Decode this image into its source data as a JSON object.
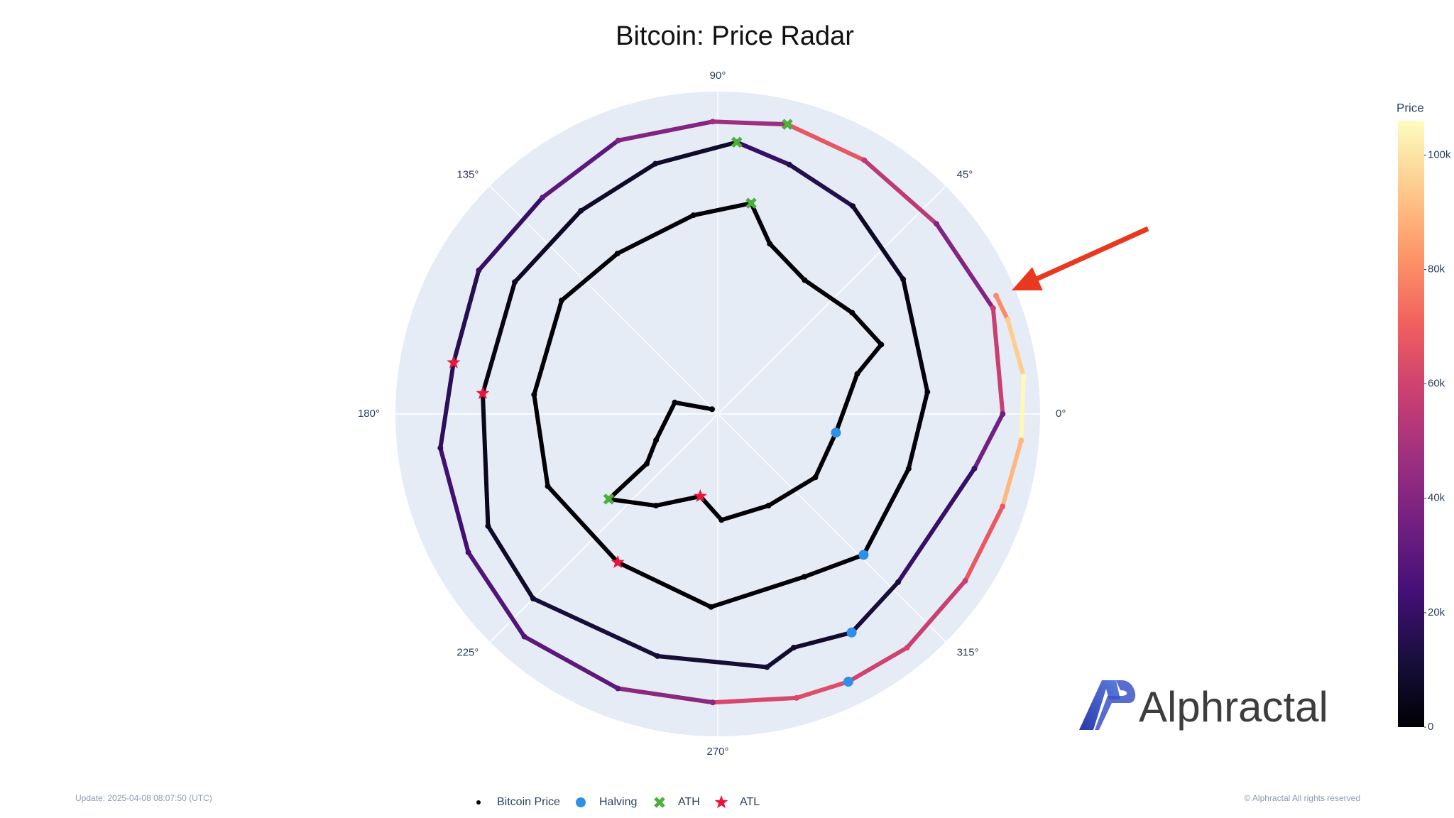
{
  "chart_data": {
    "type": "polar",
    "title": "Bitcoin: Price Radar",
    "rlim": [
      0,
      100
    ],
    "angular_ticks": [
      {
        "value": 0,
        "label": "0°"
      },
      {
        "value": 45,
        "label": "45°"
      },
      {
        "value": 90,
        "label": "90°"
      },
      {
        "value": 135,
        "label": "135°"
      },
      {
        "value": 180,
        "label": "180°"
      },
      {
        "value": 225,
        "label": "225°"
      },
      {
        "value": 270,
        "label": "270°"
      },
      {
        "value": 315,
        "label": "315°"
      }
    ],
    "background": "#e5ecf6",
    "series": [
      {
        "name": "Bitcoin Price",
        "color": "#000000",
        "marker": "line",
        "theta": [
          140,
          165,
          203,
          215,
          218,
          236,
          258,
          272,
          299,
          327,
          351,
          16,
          23,
          37,
          57,
          73,
          81,
          97,
          122,
          144,
          174,
          203,
          236,
          268,
          298,
          316,
          344,
          6,
          36,
          57,
          74,
          86,
          104,
          124,
          147,
          175,
          206,
          225,
          256,
          281,
          288,
          301.5,
          317,
          348,
          0,
          21,
          41,
          60,
          76.5,
          91,
          110,
          129,
          149,
          169,
          187,
          209,
          229,
          250,
          269,
          285.5,
          296,
          309,
          326,
          342,
          355,
          7,
          18,
          23
        ],
        "r": [
          2.3,
          13.8,
          20.8,
          26.9,
          42.9,
          34.3,
          26.1,
          32.9,
          32.5,
          36.1,
          37.1,
          45.0,
          55.1,
          52.2,
          49.5,
          55.2,
          66.2,
          62.1,
          58.7,
          59.9,
          57.3,
          57.3,
          55.5,
          59.9,
          57.2,
          62.9,
          61.6,
          65.4,
          71.1,
          76.9,
          80.5,
          84.5,
          80.0,
          76.0,
          75.1,
          73.2,
          79.3,
          81.0,
          77.4,
          80.0,
          76.2,
          79.5,
          76.5,
          81.4,
          88.4,
          91.5,
          89.9,
          90.9,
          92.4,
          90.7,
          90.3,
          86.4,
          86.5,
          83.5,
          86.7,
          88.5,
          91.5,
          90.6,
          89.5,
          91.4,
          92.4,
          93.3,
          92.6,
          92.9,
          94.5,
          95.6,
          94.6,
          93.8
        ],
        "price": [
          0.05,
          0.1,
          0.5,
          5,
          30,
          5,
          2,
          4,
          10,
          12,
          12,
          13,
          100,
          120,
          140,
          400,
          1150,
          600,
          500,
          400,
          250,
          230,
          170,
          250,
          420,
          650,
          750,
          1000,
          2500,
          7000,
          15000,
          19500,
          8000,
          7500,
          6500,
          3200,
          5000,
          8000,
          11000,
          10000,
          9000,
          8600,
          11000,
          20000,
          35000,
          58000,
          40000,
          55000,
          67500,
          47000,
          40000,
          30000,
          20000,
          15500,
          17000,
          23000,
          27000,
          30000,
          42000,
          62000,
          64000,
          60000,
          58000,
          68000,
          90000,
          105000,
          95000,
          80000
        ]
      },
      {
        "name": "Halving",
        "color": "#2e8fe8",
        "marker": "circle",
        "theta": [
          351,
          316,
          301.5,
          296
        ],
        "r": [
          37.1,
          62.9,
          79.5,
          92.4
        ]
      },
      {
        "name": "ATH",
        "color": "#4caf3a",
        "marker": "x",
        "theta": [
          218,
          81,
          86,
          76.5
        ],
        "r": [
          42.9,
          66.2,
          84.5,
          92.4
        ]
      },
      {
        "name": "ATL",
        "color": "#e8163c",
        "marker": "star",
        "theta": [
          258,
          236,
          175,
          169
        ],
        "r": [
          26.1,
          55.5,
          73.2,
          83.5
        ]
      }
    ],
    "colorbar": {
      "title": "Price",
      "lim": [
        0,
        106000
      ],
      "colorscale": [
        "#000004",
        "#180f3d",
        "#440f76",
        "#721f81",
        "#9e2f7f",
        "#cd4071",
        "#f1605d",
        "#fd9668",
        "#feca8d",
        "#fcfdbf"
      ],
      "ticks": [
        0,
        {
          "value": 20000,
          "label": "20k"
        },
        {
          "value": 40000,
          "label": "40k"
        },
        {
          "value": 60000,
          "label": "60k"
        },
        {
          "value": 80000,
          "label": "80k"
        },
        {
          "value": 100000,
          "label": "100k"
        }
      ]
    }
  },
  "footer": {
    "update": "Update: 2025-04-08 08:07:50 (UTC)",
    "copyright": "© Alphractal All rights reserved"
  },
  "logo": {
    "text": "Alphractal"
  }
}
